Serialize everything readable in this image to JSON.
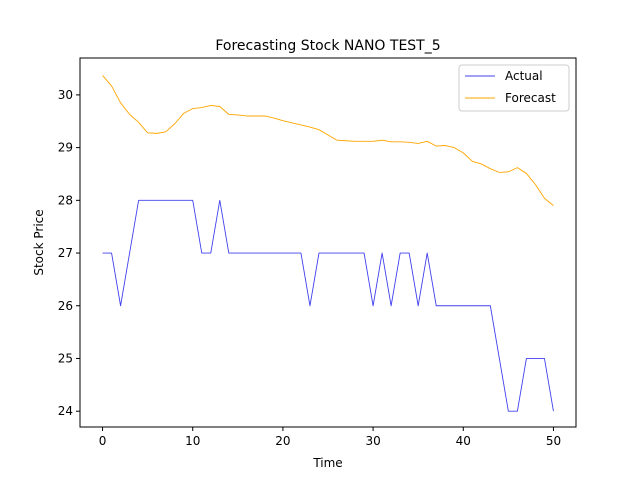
{
  "chart_data": {
    "type": "line",
    "title": "Forecasting Stock NANO TEST_5",
    "xlabel": "Time",
    "ylabel": "Stock Price",
    "xlim": [
      -2.5,
      52.5
    ],
    "ylim": [
      23.7,
      30.7
    ],
    "xticks": [
      0,
      10,
      20,
      30,
      40,
      50
    ],
    "yticks": [
      24,
      25,
      26,
      27,
      28,
      29,
      30
    ],
    "grid": false,
    "legend_position": "top-right",
    "x": [
      0,
      1,
      2,
      3,
      4,
      5,
      6,
      7,
      8,
      9,
      10,
      11,
      12,
      13,
      14,
      15,
      16,
      17,
      18,
      19,
      20,
      21,
      22,
      23,
      24,
      25,
      26,
      27,
      28,
      29,
      30,
      31,
      32,
      33,
      34,
      35,
      36,
      37,
      38,
      39,
      40,
      41,
      42,
      43,
      44,
      45,
      46,
      47,
      48,
      49,
      50
    ],
    "series": [
      {
        "name": "Actual",
        "color": "#4040ee",
        "values": [
          27,
          27,
          26,
          27,
          28,
          28,
          28,
          28,
          28,
          28,
          28,
          27,
          27,
          28,
          27,
          27,
          27,
          27,
          27,
          27,
          27,
          27,
          27,
          26,
          27,
          27,
          27,
          27,
          27,
          27,
          26,
          27,
          26,
          27,
          27,
          26,
          27,
          26,
          26,
          26,
          26,
          26,
          26,
          26,
          25,
          24,
          24,
          25,
          25,
          25,
          24
        ]
      },
      {
        "name": "Forecast",
        "color": "#ffa500",
        "values": [
          30.37,
          30.17,
          29.85,
          29.63,
          29.48,
          29.28,
          29.27,
          29.3,
          29.45,
          29.65,
          29.74,
          29.76,
          29.8,
          29.78,
          29.63,
          29.62,
          29.6,
          29.6,
          29.6,
          29.56,
          29.51,
          29.47,
          29.43,
          29.39,
          29.34,
          29.24,
          29.14,
          29.13,
          29.12,
          29.12,
          29.12,
          29.14,
          29.11,
          29.11,
          29.1,
          29.08,
          29.12,
          29.03,
          29.04,
          29.0,
          28.9,
          28.74,
          28.69,
          28.6,
          28.53,
          28.54,
          28.62,
          28.51,
          28.3,
          28.04,
          27.9
        ]
      }
    ]
  }
}
